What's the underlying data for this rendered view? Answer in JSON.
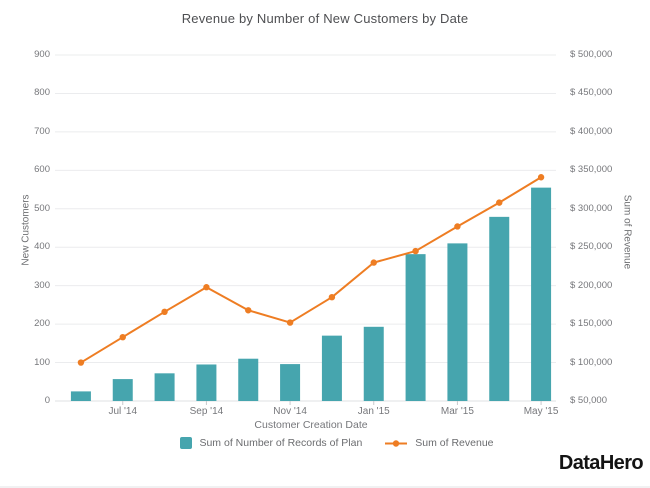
{
  "title": "Revenue by Number of New Customers by Date",
  "logo": "DataHero",
  "colors": {
    "bar": "#46a5ae",
    "line": "#ee7d23",
    "gridline": "#ebecee",
    "baseline": "#dfe0e3",
    "tick_mark": "#c8c9cc",
    "text": "#76777b"
  },
  "chart_data": {
    "type": "combo-bar-line",
    "title": "Revenue by Number of New Customers by Date",
    "xlabel": "Customer Creation Date",
    "grid": true,
    "legend_position": "bottom",
    "categories": [
      "Jun '14",
      "Jul '14",
      "Aug '14",
      "Sep '14",
      "Oct '14",
      "Nov '14",
      "Dec '14",
      "Jan '15",
      "Feb '15",
      "Mar '15",
      "Apr '15",
      "May '15"
    ],
    "x_ticks": [
      {
        "index": 1,
        "label": "Jul '14"
      },
      {
        "index": 3,
        "label": "Sep '14"
      },
      {
        "index": 5,
        "label": "Nov '14"
      },
      {
        "index": 7,
        "label": "Jan '15"
      },
      {
        "index": 9,
        "label": "Mar '15"
      },
      {
        "index": 11,
        "label": "May '15"
      }
    ],
    "left_axis": {
      "label": "New Customers",
      "min": 0,
      "max": 900,
      "step": 100,
      "tick_labels": [
        "0",
        "100",
        "200",
        "300",
        "400",
        "500",
        "600",
        "700",
        "800",
        "900"
      ]
    },
    "right_axis": {
      "label": "Sum of Revenue",
      "min": 50000,
      "max": 500000,
      "step": 50000,
      "tick_labels": [
        "$ 50,000",
        "$ 100,000",
        "$ 150,000",
        "$ 200,000",
        "$ 250,000",
        "$ 300,000",
        "$ 350,000",
        "$ 400,000",
        "$ 450,000",
        "$ 500,000"
      ]
    },
    "series": [
      {
        "name": "Sum of Number of Records of Plan",
        "type": "bar",
        "axis": "left",
        "color": "#46a5ae",
        "values": [
          25,
          57,
          72,
          95,
          110,
          96,
          170,
          193,
          382,
          410,
          479,
          555
        ]
      },
      {
        "name": "Sum of Revenue",
        "type": "line",
        "axis": "right",
        "color": "#ee7d23",
        "values": [
          100000,
          133000,
          166000,
          198000,
          168000,
          152000,
          185000,
          230000,
          245000,
          277000,
          308000,
          341000
        ]
      }
    ]
  }
}
